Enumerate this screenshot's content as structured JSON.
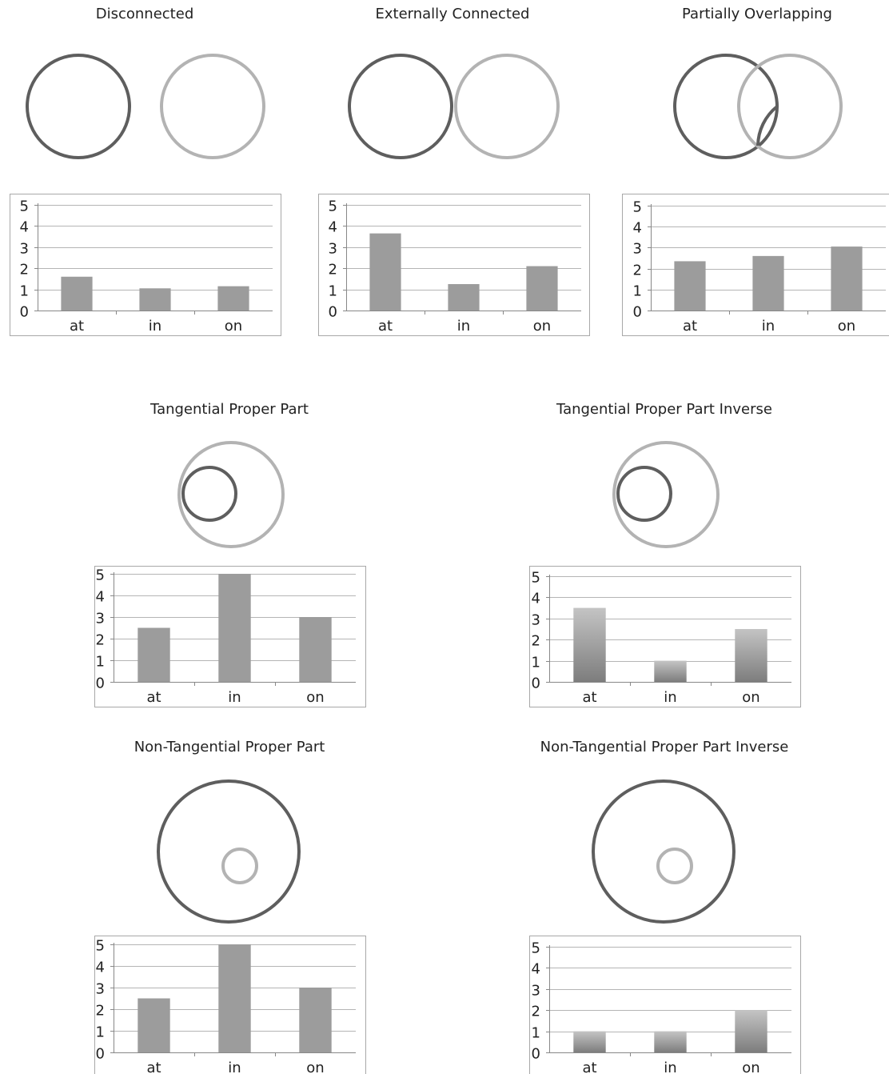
{
  "colors": {
    "dark": "#5e5e5e",
    "light": "#b3b3b3",
    "bar": "#9c9c9c",
    "bar_grad_top": "#c4c4c4",
    "bar_grad_bottom": "#7d7d7d",
    "grid": "#b5b5b5",
    "frame": "#a8a8a8"
  },
  "panels": [
    {
      "title": "Disconnected",
      "relation": "DC",
      "bar_style": "flat"
    },
    {
      "title": "Externally Connected",
      "relation": "EC",
      "bar_style": "flat"
    },
    {
      "title": "Partially Overlapping",
      "relation": "PO",
      "bar_style": "flat"
    },
    {
      "title": "Tangential Proper Part",
      "relation": "TPP",
      "bar_style": "flat"
    },
    {
      "title": "Tangential Proper Part Inverse",
      "relation": "TPPi",
      "bar_style": "gradient"
    },
    {
      "title": "Non-Tangential Proper Part",
      "relation": "NTPP",
      "bar_style": "flat"
    },
    {
      "title": "Non-Tangential Proper Part Inverse",
      "relation": "NTPPi",
      "bar_style": "gradient"
    }
  ],
  "chart_data": [
    {
      "type": "bar",
      "categories": [
        "at",
        "in",
        "on"
      ],
      "values": [
        1.6,
        1.05,
        1.15
      ],
      "ylim": [
        0,
        5
      ],
      "yticks": [
        0,
        1,
        2,
        3,
        4,
        5
      ],
      "grid": true
    },
    {
      "type": "bar",
      "categories": [
        "at",
        "in",
        "on"
      ],
      "values": [
        3.65,
        1.25,
        2.1
      ],
      "ylim": [
        0,
        5
      ],
      "yticks": [
        0,
        1,
        2,
        3,
        4,
        5
      ],
      "grid": true
    },
    {
      "type": "bar",
      "categories": [
        "at",
        "in",
        "on"
      ],
      "values": [
        2.35,
        2.6,
        3.05
      ],
      "ylim": [
        0,
        5
      ],
      "yticks": [
        0,
        1,
        2,
        3,
        4,
        5
      ],
      "grid": true
    },
    {
      "type": "bar",
      "categories": [
        "at",
        "in",
        "on"
      ],
      "values": [
        2.5,
        5,
        3
      ],
      "ylim": [
        0,
        5
      ],
      "yticks": [
        0,
        1,
        2,
        3,
        4,
        5
      ],
      "grid": true
    },
    {
      "type": "bar",
      "categories": [
        "at",
        "in",
        "on"
      ],
      "values": [
        3.5,
        1,
        2.5
      ],
      "ylim": [
        0,
        5
      ],
      "yticks": [
        0,
        1,
        2,
        3,
        4,
        5
      ],
      "grid": true
    },
    {
      "type": "bar",
      "categories": [
        "at",
        "in",
        "on"
      ],
      "values": [
        2.5,
        5,
        3
      ],
      "ylim": [
        0,
        5
      ],
      "yticks": [
        0,
        1,
        2,
        3,
        4,
        5
      ],
      "grid": true
    },
    {
      "type": "bar",
      "categories": [
        "at",
        "in",
        "on"
      ],
      "values": [
        1,
        1,
        2
      ],
      "ylim": [
        0,
        5
      ],
      "yticks": [
        0,
        1,
        2,
        3,
        4,
        5
      ],
      "grid": true
    }
  ]
}
